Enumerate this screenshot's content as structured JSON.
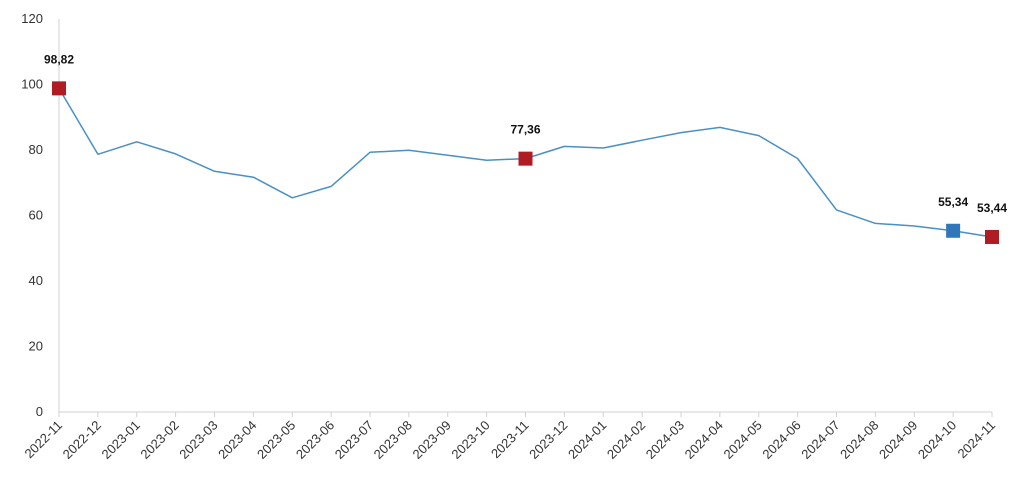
{
  "chart_data": {
    "type": "line",
    "title": "",
    "xlabel": "",
    "ylabel": "",
    "ylim": [
      0,
      120
    ],
    "yticks": [
      0,
      20,
      40,
      60,
      80,
      100,
      120
    ],
    "grid": false,
    "legend": "none",
    "categories": [
      "2022-11",
      "2022-12",
      "2023-01",
      "2023-02",
      "2023-03",
      "2023-04",
      "2023-05",
      "2023-06",
      "2023-07",
      "2023-08",
      "2023-09",
      "2023-10",
      "2023-11",
      "2023-12",
      "2024-01",
      "2024-02",
      "2024-03",
      "2024-04",
      "2024-05",
      "2024-06",
      "2024-07",
      "2024-08",
      "2024-09",
      "2024-10",
      "2024-11"
    ],
    "series": [
      {
        "values": [
          98.82,
          78.7,
          82.5,
          78.8,
          73.5,
          71.7,
          65.4,
          68.9,
          79.3,
          79.9,
          78.4,
          76.9,
          77.36,
          81.1,
          80.6,
          83.0,
          85.3,
          86.9,
          84.4,
          77.4,
          61.7,
          57.6,
          56.8,
          55.34,
          53.44
        ],
        "color": "#4a90c4"
      }
    ],
    "highlights": [
      {
        "index": 0,
        "label": "98,82",
        "color": "#b01c24"
      },
      {
        "index": 12,
        "label": "77,36",
        "color": "#b01c24"
      },
      {
        "index": 23,
        "label": "55,34",
        "color": "#2f77bb"
      },
      {
        "index": 24,
        "label": "53,44",
        "color": "#b01c24"
      }
    ],
    "axis_color": "#d0d0d0"
  }
}
